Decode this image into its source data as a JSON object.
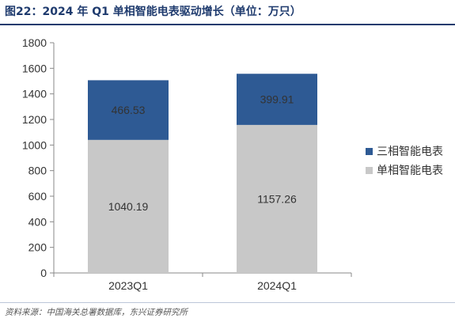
{
  "figure": {
    "title": "图22：2024 年 Q1 单相智能电表驱动增长（单位：万只）",
    "source": "资料来源：中国海关总署数据库，东兴证券研究所"
  },
  "colors": {
    "title": "#1f3b6e",
    "single_phase": "#c8c8c8",
    "three_phase": "#2e5a94"
  },
  "chart_data": {
    "type": "bar",
    "stacked": true,
    "categories": [
      "2023Q1",
      "2024Q1"
    ],
    "series": [
      {
        "name": "单相智能电表",
        "values": [
          1040.19,
          1157.26
        ],
        "labels": [
          "1040.19",
          "1157.26"
        ],
        "color": "#c8c8c8"
      },
      {
        "name": "三相智能电表",
        "values": [
          466.53,
          399.91
        ],
        "labels": [
          "466.53",
          "399.91"
        ],
        "color": "#2e5a94"
      }
    ],
    "ylim": [
      0,
      1800
    ],
    "yticks": [
      0,
      200,
      400,
      600,
      800,
      1000,
      1200,
      1400,
      1600,
      1800
    ],
    "grid": false,
    "legend_position": "right",
    "legend_order": [
      "三相智能电表",
      "单相智能电表"
    ]
  }
}
